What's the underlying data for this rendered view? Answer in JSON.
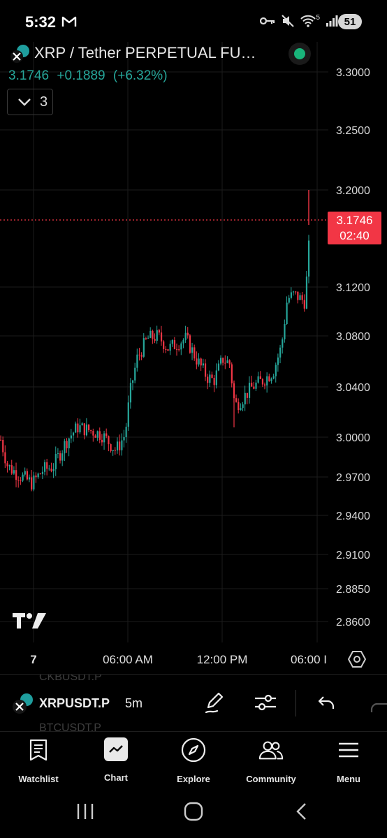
{
  "status_bar": {
    "time": "5:32",
    "battery": "51",
    "signal_label": "5"
  },
  "header": {
    "symbol_title": "XRP / Tether PERPETUAL FU…",
    "last_price": "3.1746",
    "change_abs": "+0.1889",
    "change_pct": "(+6.32%)",
    "indicators_count": "3"
  },
  "colors": {
    "up": "#26a69a",
    "down": "#f23645",
    "live": "#19b47a",
    "grid": "#1c1c1c"
  },
  "price_tag": {
    "price": "3.1746",
    "countdown": "02:40"
  },
  "chart_data": {
    "type": "candlestick",
    "interval": "5m",
    "x_ticks": [
      "7",
      "06:00 AM",
      "12:00 PM",
      "06:00 I"
    ],
    "y_ticks": [
      "3.3000",
      "3.2500",
      "3.2000",
      "3.1200",
      "3.0800",
      "3.0400",
      "3.0000",
      "2.9700",
      "2.9400",
      "2.9100",
      "2.8850",
      "2.8600"
    ],
    "last_price": 3.1746,
    "range_low": 2.962,
    "range_high": 3.198,
    "anchors": [
      [
        0,
        2.998
      ],
      [
        10,
        2.978
      ],
      [
        25,
        2.972
      ],
      [
        45,
        2.965
      ],
      [
        60,
        2.975
      ],
      [
        75,
        2.978
      ],
      [
        95,
        2.998
      ],
      [
        110,
        3.008
      ],
      [
        130,
        3.005
      ],
      [
        145,
        3.002
      ],
      [
        165,
        2.99
      ],
      [
        178,
        3.002
      ],
      [
        185,
        3.035
      ],
      [
        195,
        3.062
      ],
      [
        210,
        3.078
      ],
      [
        225,
        3.08
      ],
      [
        240,
        3.07
      ],
      [
        255,
        3.075
      ],
      [
        265,
        3.078
      ],
      [
        280,
        3.062
      ],
      [
        295,
        3.048
      ],
      [
        305,
        3.045
      ],
      [
        318,
        3.062
      ],
      [
        328,
        3.058
      ],
      [
        335,
        3.025
      ],
      [
        345,
        3.03
      ],
      [
        360,
        3.04
      ],
      [
        375,
        3.045
      ],
      [
        390,
        3.052
      ],
      [
        402,
        3.072
      ],
      [
        410,
        3.11
      ],
      [
        420,
        3.114
      ],
      [
        435,
        3.108
      ],
      [
        440,
        3.14
      ],
      [
        443,
        3.178
      ]
    ]
  },
  "toolbar": {
    "symbol": "XRPUSDT.P",
    "interval": "5m",
    "ghost_above": "CKBUSDT.P",
    "ghost_below": "BTCUSDT.P"
  },
  "bottom_nav": [
    {
      "label": "Watchlist",
      "icon": "watchlist-icon"
    },
    {
      "label": "Chart",
      "icon": "chart-icon"
    },
    {
      "label": "Explore",
      "icon": "compass-icon"
    },
    {
      "label": "Community",
      "icon": "community-icon"
    },
    {
      "label": "Menu",
      "icon": "menu-icon"
    }
  ]
}
